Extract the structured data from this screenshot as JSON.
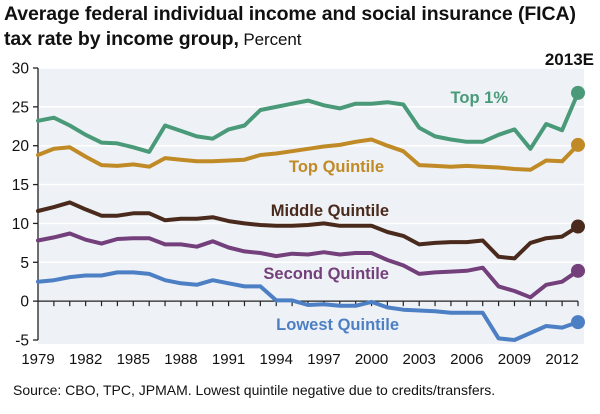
{
  "title": {
    "main": "Average federal individual income and social insurance (FICA) tax rate by income group,",
    "unit": " Percent"
  },
  "estimate_label": "2013E",
  "source": "Source: CBO, TPC, JPMAM.  Lowest quintile negative due to credits/transfers.",
  "chart_data": {
    "type": "line",
    "title": "Average federal individual income and social insurance (FICA) tax rate by income group",
    "xlabel": "",
    "ylabel": "Percent",
    "ylim": [
      -5,
      30
    ],
    "xlim": [
      1979,
      2013
    ],
    "yticks": [
      -5,
      0,
      5,
      10,
      15,
      20,
      25,
      30
    ],
    "xticks": [
      1979,
      1982,
      1985,
      1988,
      1991,
      1994,
      1997,
      2000,
      2003,
      2006,
      2009,
      2012
    ],
    "grid": true,
    "legend": "inline labels",
    "annotations": [
      "2013E"
    ],
    "x": [
      1979,
      1980,
      1981,
      1982,
      1983,
      1984,
      1985,
      1986,
      1987,
      1988,
      1989,
      1990,
      1991,
      1992,
      1993,
      1994,
      1995,
      1996,
      1997,
      1998,
      1999,
      2000,
      2001,
      2002,
      2003,
      2004,
      2005,
      2006,
      2007,
      2008,
      2009,
      2010,
      2011,
      2012,
      2013
    ],
    "series": [
      {
        "name": "Top 1%",
        "color": "#4a9a7a",
        "values": [
          23.2,
          23.6,
          22.6,
          21.4,
          20.4,
          20.3,
          19.8,
          19.2,
          22.6,
          21.9,
          21.2,
          20.9,
          22.1,
          22.6,
          24.6,
          25.0,
          25.4,
          25.8,
          25.2,
          24.8,
          25.4,
          25.4,
          25.6,
          25.3,
          22.3,
          21.2,
          20.8,
          20.5,
          20.5,
          21.4,
          22.1,
          19.6,
          22.8,
          22.0,
          26.8
        ]
      },
      {
        "name": "Top Quintile",
        "color": "#c08a26",
        "values": [
          18.8,
          19.6,
          19.8,
          18.6,
          17.5,
          17.4,
          17.6,
          17.3,
          18.4,
          18.2,
          18.0,
          18.0,
          18.1,
          18.2,
          18.8,
          19.0,
          19.3,
          19.6,
          19.9,
          20.1,
          20.5,
          20.8,
          20.0,
          19.3,
          17.5,
          17.4,
          17.3,
          17.4,
          17.3,
          17.2,
          17.0,
          16.9,
          18.1,
          18.0,
          20.1
        ]
      },
      {
        "name": "Middle Quintile",
        "color": "#4a2a1c",
        "values": [
          11.6,
          12.1,
          12.7,
          11.8,
          11.0,
          11.0,
          11.3,
          11.3,
          10.4,
          10.6,
          10.6,
          10.8,
          10.3,
          10.0,
          9.8,
          9.7,
          9.7,
          9.8,
          10.0,
          9.7,
          9.7,
          9.7,
          8.9,
          8.4,
          7.3,
          7.5,
          7.6,
          7.6,
          7.8,
          5.7,
          5.5,
          7.5,
          8.1,
          8.3,
          9.6
        ]
      },
      {
        "name": "Second Quintile",
        "color": "#74407c",
        "values": [
          7.8,
          8.2,
          8.7,
          7.9,
          7.4,
          8.0,
          8.1,
          8.1,
          7.3,
          7.3,
          7.0,
          7.7,
          6.9,
          6.4,
          6.2,
          5.8,
          6.1,
          6.0,
          6.3,
          6.0,
          6.2,
          6.2,
          5.3,
          4.6,
          3.5,
          3.7,
          3.8,
          3.9,
          4.3,
          1.9,
          1.3,
          0.5,
          2.1,
          2.5,
          3.9
        ]
      },
      {
        "name": "Lowest Quintile",
        "color": "#4d7fc4",
        "values": [
          2.5,
          2.7,
          3.1,
          3.3,
          3.3,
          3.7,
          3.7,
          3.5,
          2.7,
          2.3,
          2.1,
          2.7,
          2.3,
          1.9,
          1.9,
          0.1,
          0.1,
          -0.5,
          -0.4,
          -0.6,
          -0.6,
          -0.1,
          -0.8,
          -1.1,
          -1.2,
          -1.3,
          -1.5,
          -1.5,
          -1.5,
          -4.8,
          -5.0,
          -4.1,
          -3.2,
          -3.4,
          -2.7
        ]
      }
    ],
    "series_labels": [
      "Top 1%",
      "Top Quintile",
      "Middle Quintile",
      "Second Quintile",
      "Lowest Quintile"
    ]
  }
}
